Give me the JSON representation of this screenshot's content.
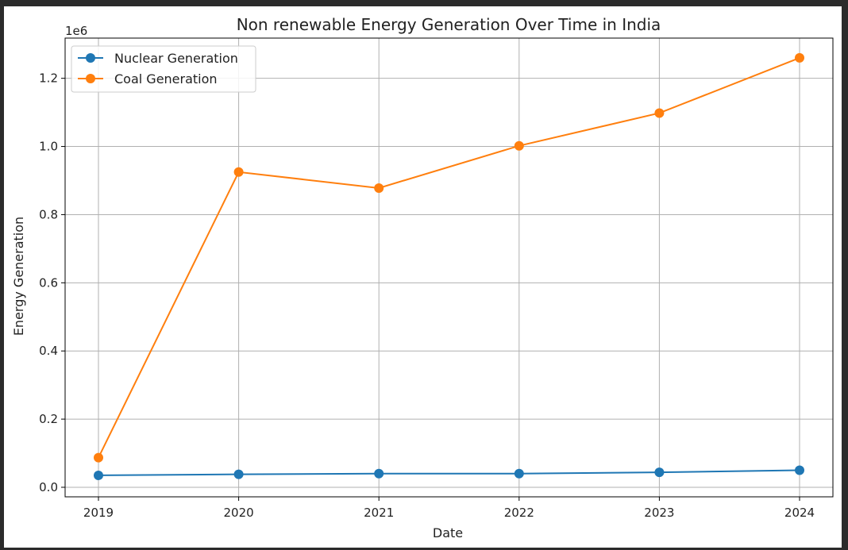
{
  "chart_data": {
    "type": "line",
    "title": "Non renewable Energy Generation Over Time in India",
    "xlabel": "Date",
    "ylabel": "Energy Generation",
    "y_multiplier_label": "1e6",
    "categories": [
      "2019",
      "2020",
      "2021",
      "2022",
      "2023",
      "2024"
    ],
    "y_ticks": [
      0.0,
      0.2,
      0.4,
      0.6,
      0.8,
      1.0,
      1.2
    ],
    "y_tick_labels": [
      "0.0",
      "0.2",
      "0.4",
      "0.6",
      "0.8",
      "1.0",
      "1.2"
    ],
    "ylim": [
      -0.028,
      1.318
    ],
    "y_scale": 1000000,
    "grid": true,
    "legend_position": "top-left",
    "series": [
      {
        "name": "Nuclear Generation",
        "color": "#1f77b4",
        "values": [
          35000,
          38000,
          40000,
          40000,
          44000,
          50000
        ]
      },
      {
        "name": "Coal Generation",
        "color": "#ff7f0e",
        "values": [
          87000,
          925000,
          878000,
          1002000,
          1098000,
          1260000
        ]
      }
    ]
  }
}
